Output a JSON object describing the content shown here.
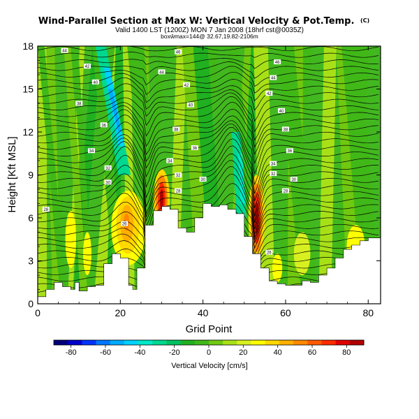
{
  "chart_data": {
    "type": "heatmap",
    "title": "Wind-Parallel Section at Max W: Vertical Velocity & Pot.Temp.",
    "title_mark": "(C)",
    "subtitle_line1": "Valid 1400 LST (1200Z) MON 7 Jan 2008 (18hrf cst@0035Z)",
    "subtitle_line2": "boxŵmax=144@ 32.67,19.82-2106m",
    "xlabel": "Grid Point",
    "ylabel": "Height [Kft MSL]",
    "xlim": [
      0,
      83
    ],
    "ylim": [
      0,
      18
    ],
    "x_ticks": [
      "0",
      "20",
      "40",
      "60",
      "80"
    ],
    "x_tick_values": [
      0,
      20,
      40,
      60,
      80
    ],
    "y_ticks": [
      "0",
      "3",
      "6",
      "9",
      "12",
      "15",
      "18"
    ],
    "y_tick_values": [
      0,
      3,
      6,
      9,
      12,
      15,
      18
    ],
    "colorbar": {
      "label": "Vertical Velocity [cm/s]",
      "tick_labels": [
        "-80",
        "-60",
        "-40",
        "-20",
        "0",
        "20",
        "40",
        "60",
        "80"
      ],
      "tick_values": [
        -80,
        -60,
        -40,
        -20,
        0,
        20,
        40,
        60,
        80
      ],
      "range": [
        -90,
        90
      ],
      "colors": [
        "#00007a",
        "#0000c8",
        "#0033ff",
        "#0077ff",
        "#00aaff",
        "#00d2ff",
        "#00e8c8",
        "#00d890",
        "#00c060",
        "#20b020",
        "#40b818",
        "#70c810",
        "#a8e018",
        "#d8f020",
        "#ffff00",
        "#ffd800",
        "#ffb000",
        "#ff8800",
        "#ff5a00",
        "#ff2a00",
        "#e00000",
        "#b00000"
      ]
    },
    "terrain_profile": {
      "x": [
        0,
        2,
        4,
        6,
        8,
        9,
        10,
        12,
        14,
        16,
        18,
        20,
        22,
        23,
        24,
        26,
        28,
        30,
        32,
        34,
        36,
        38,
        40,
        42,
        44,
        46,
        48,
        50,
        52,
        54,
        56,
        58,
        60,
        62,
        64,
        66,
        68,
        70,
        72,
        74,
        76,
        78,
        80,
        83
      ],
      "height_kft": [
        0.5,
        1.0,
        1.5,
        1.2,
        1.0,
        1.5,
        0.9,
        1.2,
        1.3,
        2.8,
        3.5,
        3.2,
        1.3,
        1.0,
        2.5,
        5.5,
        6.5,
        6.8,
        6.6,
        5.3,
        5.0,
        6.0,
        7.0,
        6.8,
        6.9,
        6.6,
        6.3,
        4.7,
        3.5,
        2.5,
        1.6,
        1.4,
        1.3,
        1.3,
        1.6,
        1.5,
        2.0,
        2.5,
        3.2,
        3.8,
        4.1,
        4.4,
        4.6,
        4.6
      ]
    },
    "vertical_velocity_features": [
      {
        "type": "updraft",
        "x_center": 22,
        "height_kft": 5.5,
        "peak_cm_s": 55
      },
      {
        "type": "updraft",
        "x_center": 30,
        "height_kft": 7.3,
        "peak_cm_s": 80
      },
      {
        "type": "updraft",
        "x_center": 53,
        "height_kft": 6.0,
        "peak_cm_s": 85
      },
      {
        "type": "downdraft",
        "x_center": 20,
        "height_kft": 13.0,
        "peak_cm_s": -45
      },
      {
        "type": "downdraft",
        "x_center": 50,
        "height_kft": 7.5,
        "peak_cm_s": -25
      }
    ],
    "contour_labels": [
      {
        "text": "44",
        "x": 6.5,
        "y_kft": 17.7
      },
      {
        "text": "42",
        "x": 12,
        "y_kft": 16.6
      },
      {
        "text": "40",
        "x": 14,
        "y_kft": 15.5
      },
      {
        "text": "38",
        "x": 10,
        "y_kft": 14.0
      },
      {
        "text": "36",
        "x": 16,
        "y_kft": 12.5
      },
      {
        "text": "34",
        "x": 13,
        "y_kft": 10.7
      },
      {
        "text": "32",
        "x": 17,
        "y_kft": 9.5
      },
      {
        "text": "30",
        "x": 17,
        "y_kft": 8.5
      },
      {
        "text": "28",
        "x": 2,
        "y_kft": 6.6
      },
      {
        "text": "46",
        "x": 34,
        "y_kft": 17.6
      },
      {
        "text": "44",
        "x": 30,
        "y_kft": 16.2
      },
      {
        "text": "42",
        "x": 36,
        "y_kft": 15.3
      },
      {
        "text": "40",
        "x": 37,
        "y_kft": 13.9
      },
      {
        "text": "38",
        "x": 33.5,
        "y_kft": 12.2
      },
      {
        "text": "36",
        "x": 38,
        "y_kft": 10.9
      },
      {
        "text": "34",
        "x": 32,
        "y_kft": 10.0
      },
      {
        "text": "32",
        "x": 34,
        "y_kft": 9.0
      },
      {
        "text": "30",
        "x": 40,
        "y_kft": 8.7
      },
      {
        "text": "28",
        "x": 34,
        "y_kft": 7.9
      },
      {
        "text": "46",
        "x": 58,
        "y_kft": 16.9
      },
      {
        "text": "44",
        "x": 57,
        "y_kft": 15.8
      },
      {
        "text": "42",
        "x": 56,
        "y_kft": 14.7
      },
      {
        "text": "40",
        "x": 59,
        "y_kft": 13.5
      },
      {
        "text": "38",
        "x": 60,
        "y_kft": 12.2
      },
      {
        "text": "36",
        "x": 61,
        "y_kft": 10.7
      },
      {
        "text": "34",
        "x": 57,
        "y_kft": 9.8
      },
      {
        "text": "32",
        "x": 57,
        "y_kft": 9.1
      },
      {
        "text": "30",
        "x": 62,
        "y_kft": 8.7
      },
      {
        "text": "28",
        "x": 60,
        "y_kft": 7.9
      },
      {
        "text": "26",
        "x": 21,
        "y_kft": 5.6
      },
      {
        "text": "26",
        "x": 56,
        "y_kft": 3.6
      }
    ]
  }
}
